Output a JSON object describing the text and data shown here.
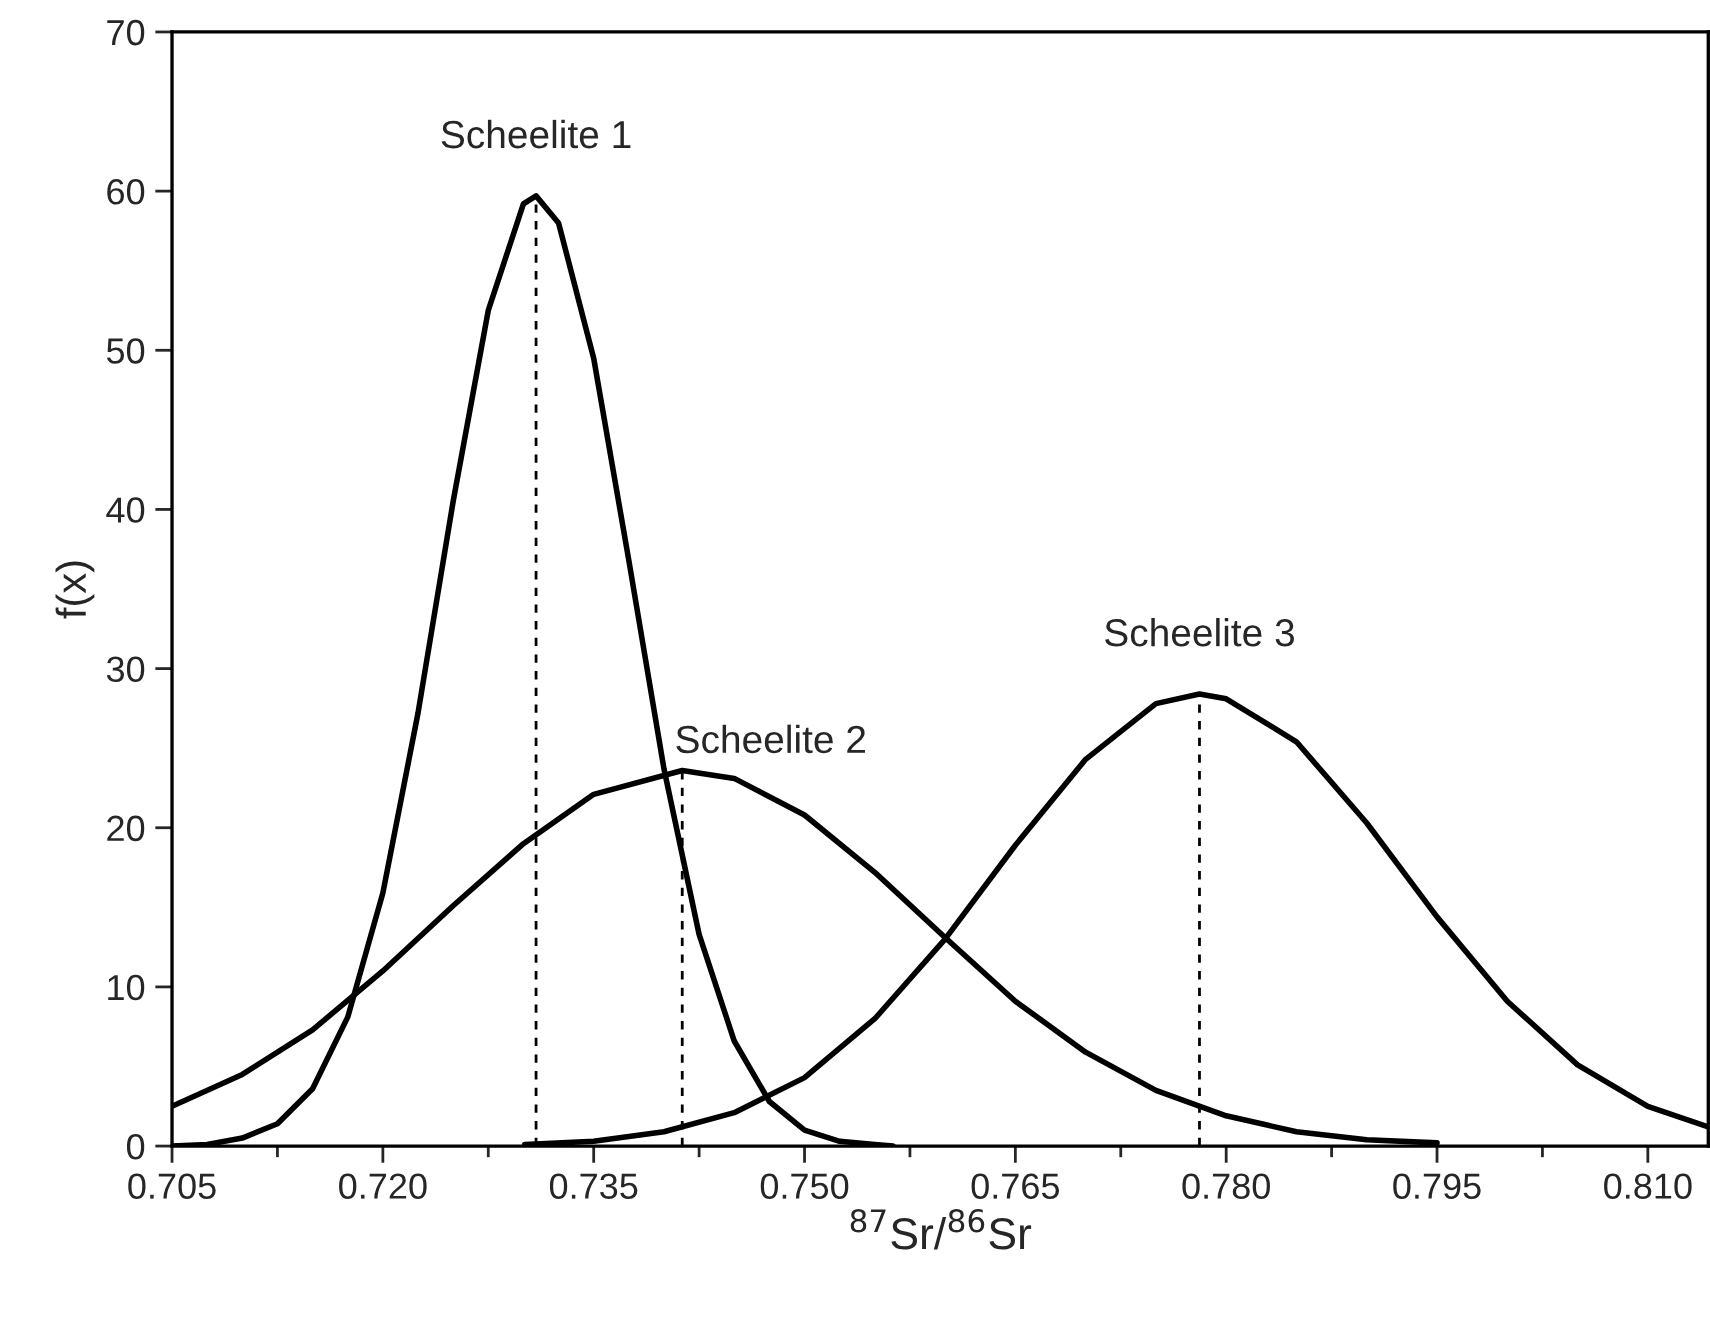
{
  "chart_data": {
    "type": "line",
    "xlabel": "$^{87}$Sr/$^{86}$Sr",
    "ylabel": "f(x)",
    "series": [
      {
        "name": "Scheelite 1",
        "color": "#000000",
        "x": [
          0.705,
          0.7075,
          0.71,
          0.7125,
          0.715,
          0.7175,
          0.72,
          0.7225,
          0.725,
          0.7275,
          0.73,
          0.7309,
          0.7325,
          0.735,
          0.7375,
          0.74,
          0.7425,
          0.745,
          0.7475,
          0.75,
          0.7525,
          0.755,
          0.7563
        ],
        "values": [
          0.0,
          0.1,
          0.5,
          1.4,
          3.6,
          8.1,
          15.9,
          27.2,
          40.5,
          52.5,
          59.2,
          59.7,
          58.0,
          49.5,
          36.8,
          23.7,
          13.3,
          6.6,
          2.8,
          1.0,
          0.3,
          0.1,
          0.0
        ]
      },
      {
        "name": "Scheelite 2",
        "color": "#000000",
        "x": [
          0.705,
          0.71,
          0.715,
          0.72,
          0.725,
          0.73,
          0.735,
          0.7413,
          0.745,
          0.75,
          0.755,
          0.76,
          0.765,
          0.77,
          0.775,
          0.78,
          0.785,
          0.79,
          0.795
        ],
        "values": [
          2.5,
          4.5,
          7.3,
          11.0,
          15.1,
          19.0,
          22.1,
          23.6,
          23.1,
          20.8,
          17.2,
          13.1,
          9.1,
          5.9,
          3.5,
          1.9,
          0.9,
          0.4,
          0.2
        ]
      },
      {
        "name": "Scheelite 3",
        "color": "#000000",
        "x": [
          0.7301,
          0.735,
          0.74,
          0.745,
          0.75,
          0.755,
          0.76,
          0.765,
          0.77,
          0.775,
          0.7781,
          0.78,
          0.785,
          0.79,
          0.795,
          0.8,
          0.805,
          0.81,
          0.8143
        ],
        "values": [
          0.1,
          0.3,
          0.9,
          2.1,
          4.3,
          8.0,
          13.0,
          18.9,
          24.3,
          27.8,
          28.4,
          28.1,
          25.4,
          20.3,
          14.4,
          9.1,
          5.1,
          2.5,
          1.2
        ]
      }
    ],
    "ref_lines": [
      {
        "axis": "x",
        "value": 0.7309,
        "color": "#000000",
        "line_style": "dashed"
      },
      {
        "axis": "x",
        "value": 0.7413,
        "color": "#000000",
        "line_style": "dashed"
      },
      {
        "axis": "x",
        "value": 0.7781,
        "color": "#000000",
        "line_style": "dashed"
      }
    ],
    "xlim": [
      0.705,
      0.8143
    ],
    "xticks": [
      0.705,
      {
        "value": 0.72,
        "label": "0.720"
      },
      0.735,
      {
        "value": 0.75,
        "label": "0.750"
      },
      0.765,
      {
        "value": 0.78,
        "label": "0.780"
      },
      0.795,
      {
        "value": 0.81,
        "label": "0.810"
      }
    ],
    "ylim": [
      0,
      70
    ],
    "yticks": [
      0,
      10,
      20,
      30,
      40,
      50,
      60,
      70
    ],
    "grid": false,
    "legend": false,
    "marker": "none",
    "line_style": "solid"
  }
}
